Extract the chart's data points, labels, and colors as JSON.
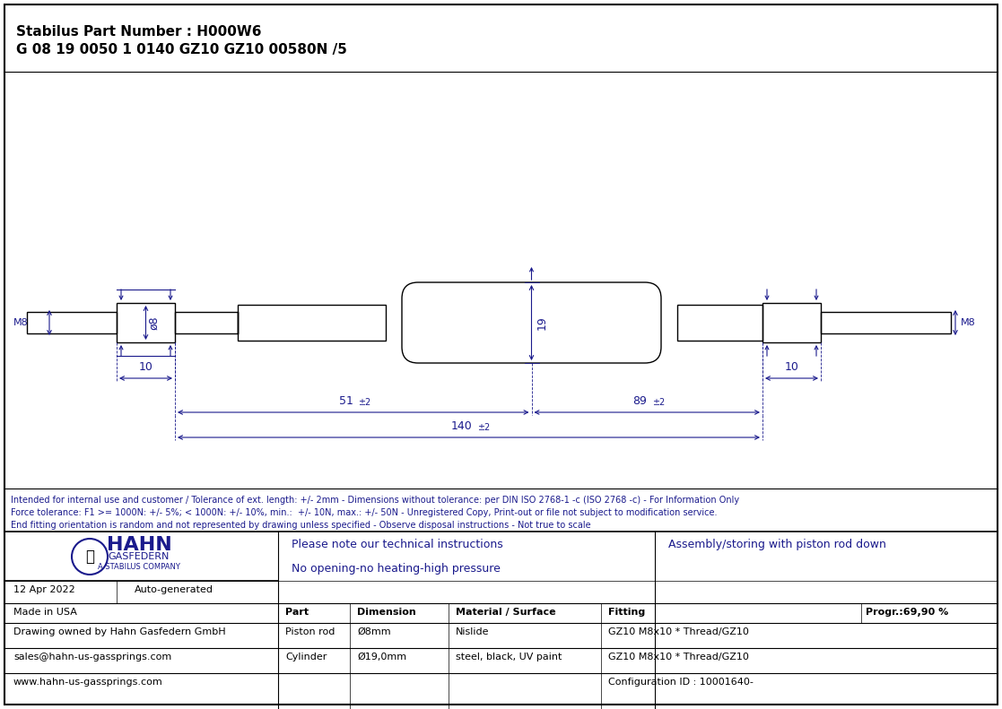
{
  "title_line1": "Stabilus Part Number : H000W6",
  "title_line2": "G 08 19 0050 1 0140 GZ10 GZ10 00580N /5",
  "bg_color": "#ffffff",
  "border_color": "#000000",
  "dim_color": "#1a1a8c",
  "draw_color": "#000000",
  "footer_notes": [
    "Intended for internal use and customer / Tolerance of ext. length: +/- 2mm - Dimensions without tolerance: per DIN ISO 2768-1 -c (ISO 2768 -c) - For Information Only",
    "Force tolerance: F1 >= 1000N: +/- 5%; < 1000N: +/- 10%, min.:  +/- 10N, max.: +/- 50N - Unregistered Copy, Print-out or file not subject to modification service.",
    "End fitting orientation is random and not represented by drawing unless specified - Observe disposal instructions - Not true to scale"
  ],
  "date": "12 Apr 2022",
  "generated": "Auto-generated",
  "made_in": "Made in USA",
  "drawing_owned": "Drawing owned by Hahn Gasfedern GmbH",
  "email": "sales@hahn-us-gassprings.com",
  "website": "www.hahn-us-gassprings.com",
  "note1": "Please note our technical instructions",
  "note2": "No opening-no heating-high pressure",
  "assembly_note": "Assembly/storing with piston rod down",
  "progr": "Progr.:69,90 %",
  "table_headers": [
    "Part",
    "Dimension",
    "Material / Surface",
    "Fitting"
  ],
  "row1": [
    "Piston rod",
    "Ø8mm",
    "Nislide",
    "GZ10 M8x10 * Thread/GZ10"
  ],
  "row2": [
    "Cylinder",
    "Ø19,0mm",
    "steel, black, UV paint",
    "GZ10 M8x10 * Thread/GZ10"
  ],
  "config_id": "Configuration ID : 10001640-"
}
